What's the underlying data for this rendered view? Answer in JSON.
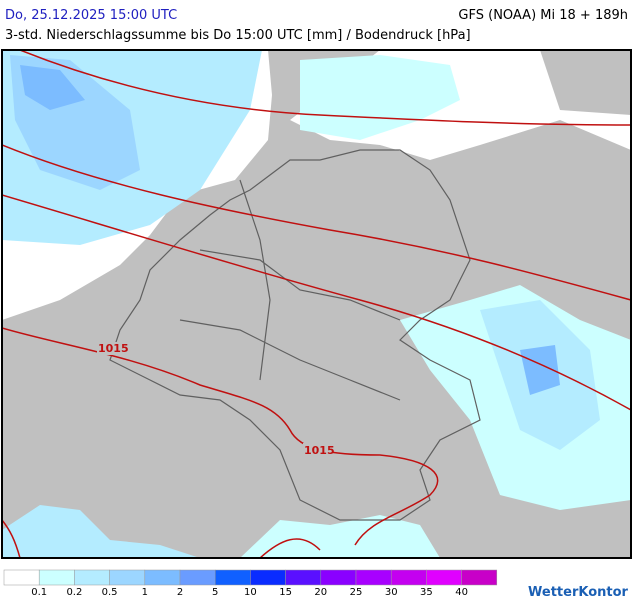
{
  "header": {
    "title": "Do, 25.12.2025 15:00 UTC",
    "model": "GFS (NOAA) Mi 18 + 189h",
    "subtitle": "3-std. Niederschlagssumme bis Do 15:00 UTC [mm] / Bodendruck [hPa]"
  },
  "map": {
    "isobar_labels": [
      "1015",
      "1015"
    ]
  },
  "legend": {
    "colors": [
      "#ffffff",
      "#ccffff",
      "#b4ecff",
      "#9cd6ff",
      "#7cbcff",
      "#6a9cff",
      "#1060ff",
      "#0a2cff",
      "#5a10ff",
      "#8a00ff",
      "#a800ff",
      "#c400f0",
      "#e000ff",
      "#c800c8"
    ],
    "labels": [
      0.1,
      0.2,
      0.5,
      1,
      2,
      5,
      10,
      15,
      20,
      25,
      30,
      35,
      40
    ]
  },
  "logo": "WetterKontor"
}
